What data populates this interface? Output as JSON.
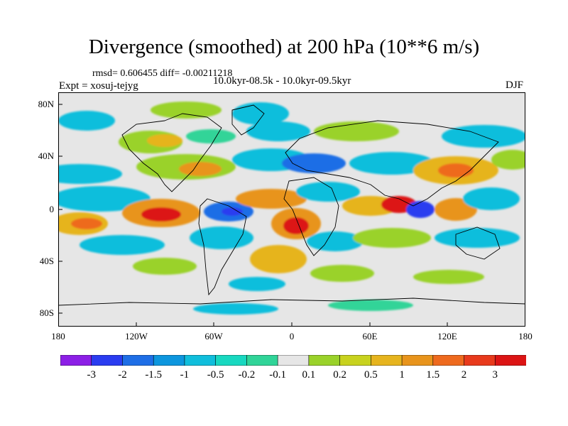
{
  "title": "Divergence (smoothed) at 200 hPa (10**6 m/s)",
  "stats": "rmsd= 0.606455 diff= -0.00211218",
  "experiment": "Expt = xosuj-tejyg",
  "period": "10.0kyr-08.5k - 10.0kyr-09.5kyr",
  "season": "DJF",
  "y_axis_labels": [
    "80N",
    "40N",
    "0",
    "40S",
    "80S"
  ],
  "x_axis_labels": [
    "180",
    "120W",
    "60W",
    "0",
    "60E",
    "120E",
    "180"
  ],
  "colorbar": {
    "labels": [
      "-3",
      "-2",
      "-1.5",
      "-1",
      "-0.5",
      "-0.2",
      "-0.1",
      "0.1",
      "0.2",
      "0.5",
      "1",
      "1.5",
      "2",
      "3"
    ],
    "colors": [
      "#8c1fe6",
      "#2a3cf0",
      "#1e6ee6",
      "#0d96de",
      "#10bedc",
      "#18d8c0",
      "#30d498",
      "#e6e6e6",
      "#9ad22a",
      "#c8d21e",
      "#e6b41e",
      "#e8941c",
      "#ee6a1e",
      "#e83a1c",
      "#dc1414"
    ]
  },
  "map_colors": {
    "neutral": "#e6e6e6",
    "ocean_land_outline": "#000000",
    "deep_pos": "#dc1414",
    "pos_orange": "#e8941c",
    "pos_yellow": "#e6b41e",
    "pos_green": "#9ad22a",
    "neg_cyan": "#10bedc",
    "neg_blue": "#1e6ee6",
    "deep_neg": "#2a3cf0"
  }
}
